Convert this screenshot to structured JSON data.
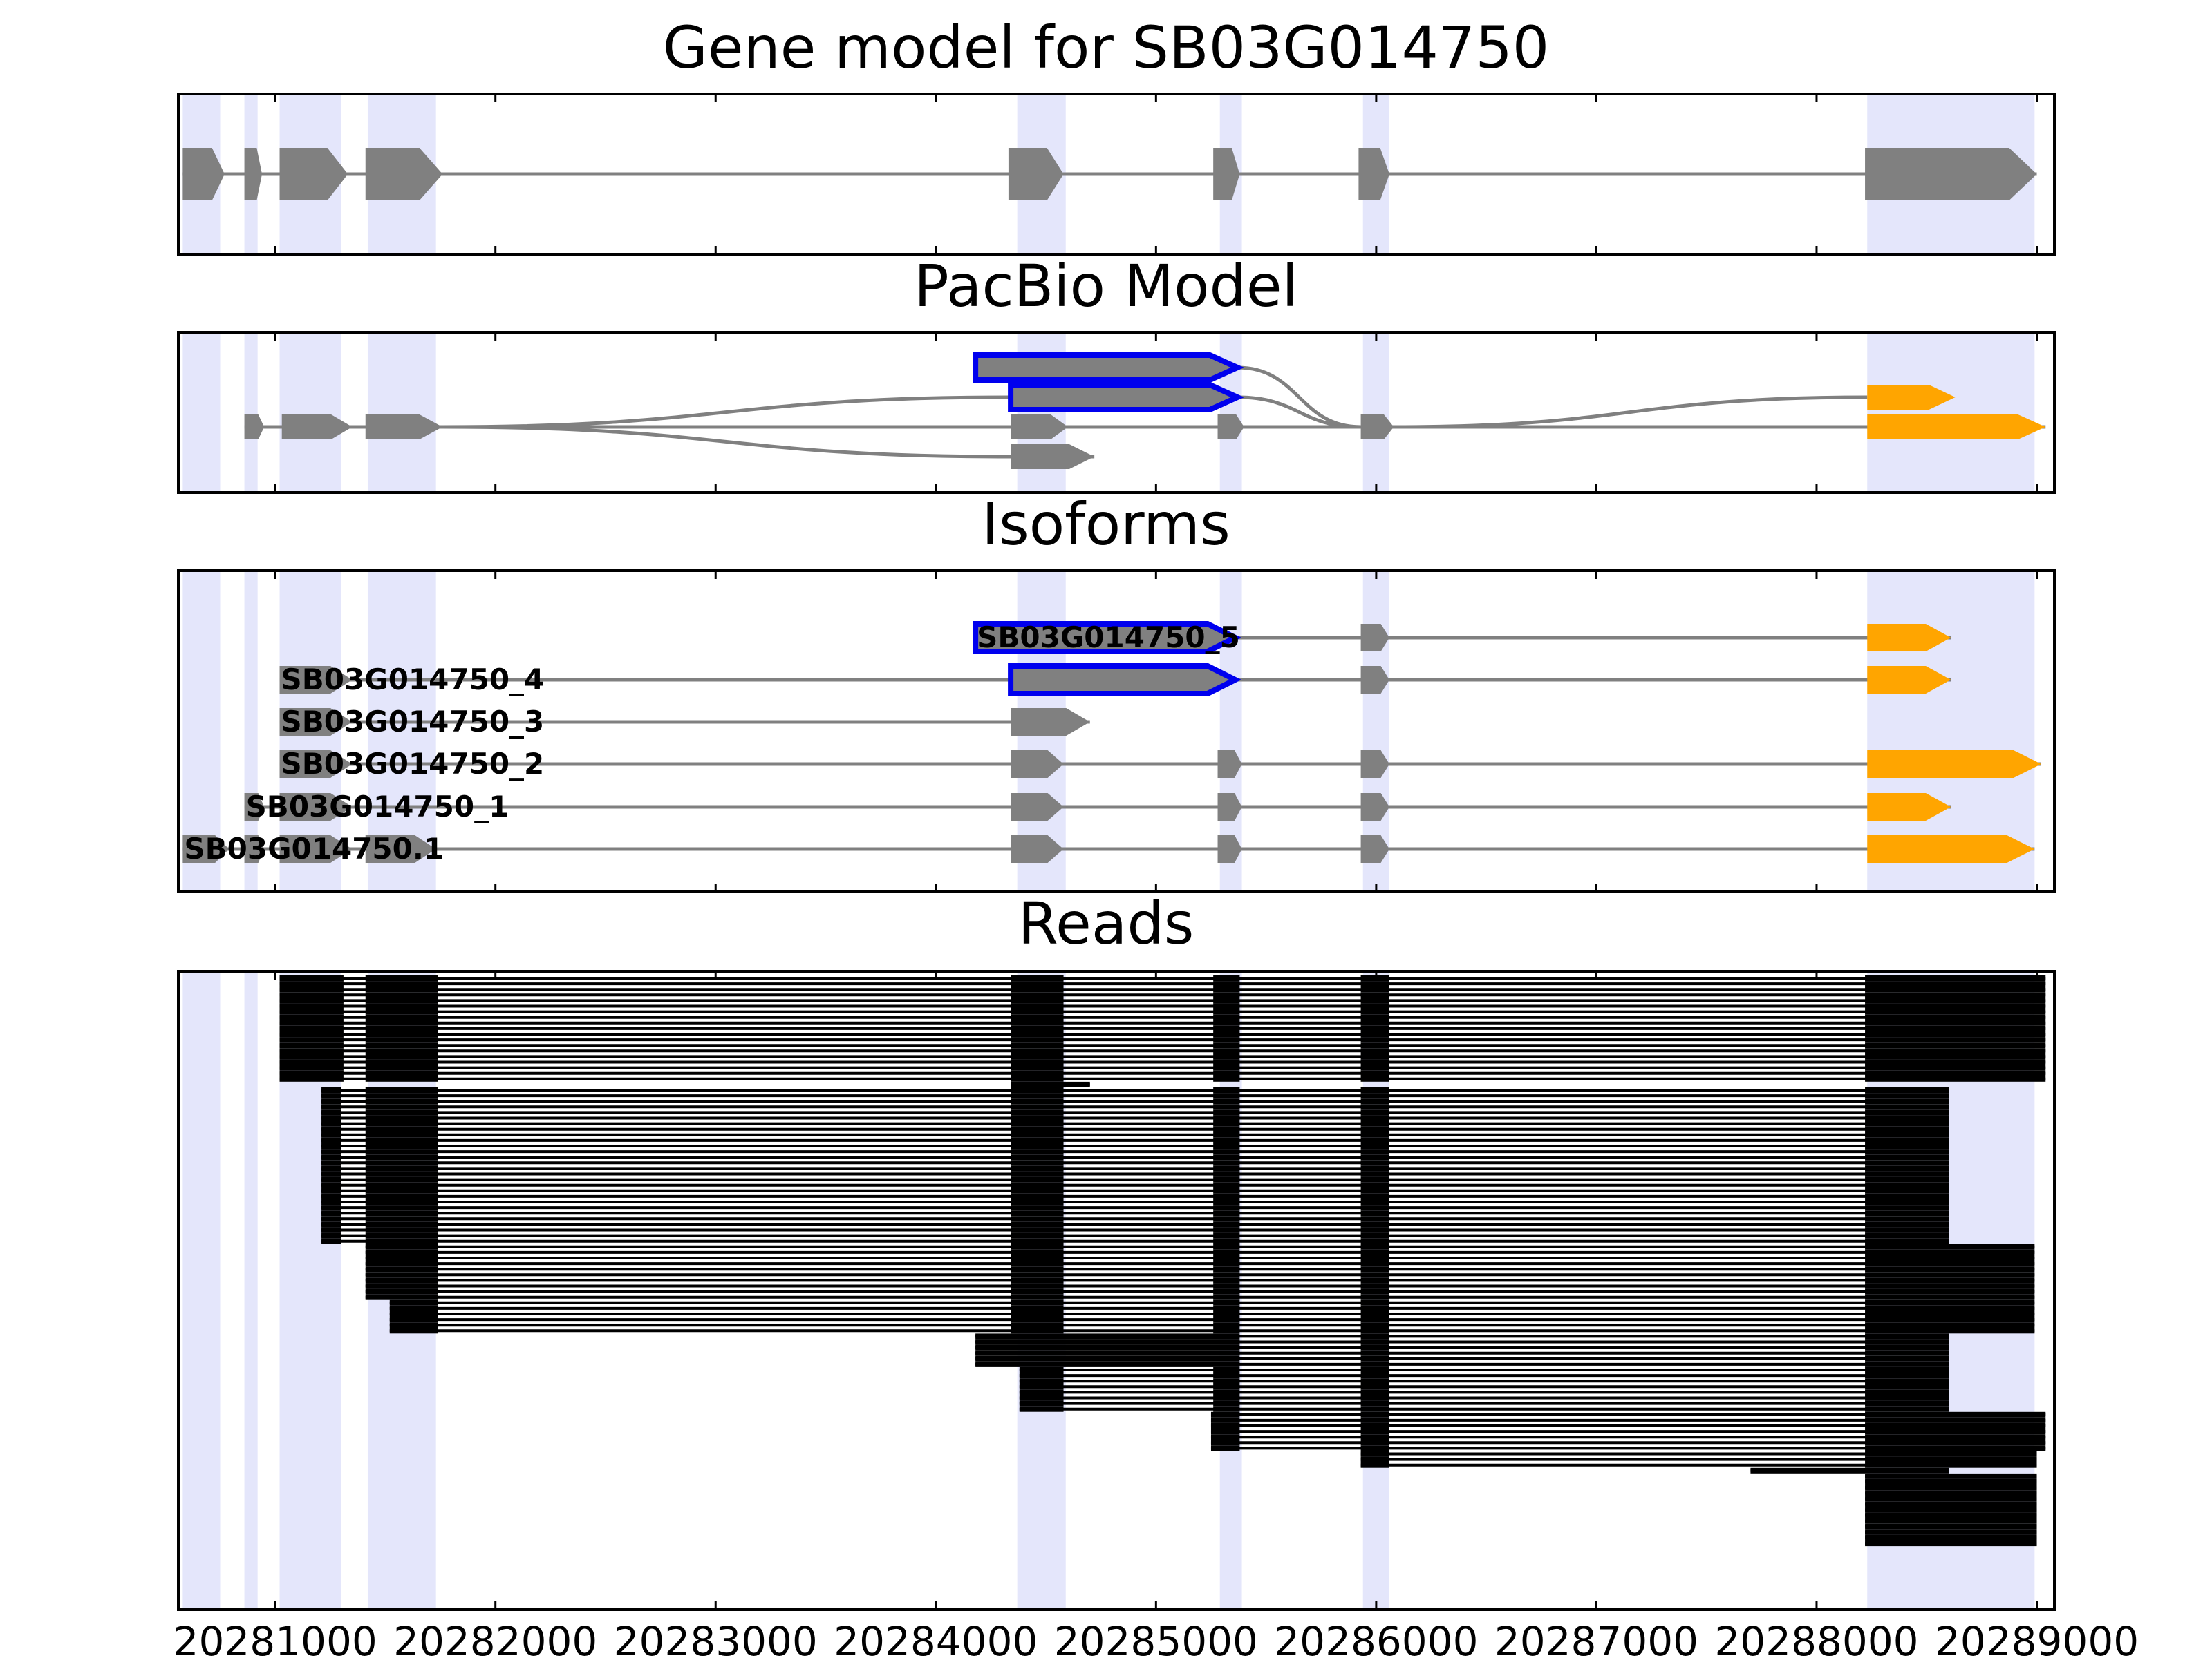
{
  "chart_data": {
    "type": "gene-structure",
    "x_axis": {
      "range": [
        20280560,
        20289080
      ],
      "ticks": [
        20281000,
        20282000,
        20283000,
        20284000,
        20285000,
        20286000,
        20287000,
        20288000,
        20289000
      ],
      "tick_labels": [
        "20281000",
        "20282000",
        "20283000",
        "20284000",
        "20285000",
        "20286000",
        "20287000",
        "20288000",
        "20289000"
      ]
    },
    "exon_regions": [
      [
        20280580,
        20280750
      ],
      [
        20280860,
        20280920
      ],
      [
        20281020,
        20281300
      ],
      [
        20281420,
        20281730
      ],
      [
        20284370,
        20284590
      ],
      [
        20285290,
        20285390
      ],
      [
        20285940,
        20286060
      ],
      [
        20288230,
        20288990
      ]
    ],
    "colors": {
      "region": "#E4E6FB",
      "exon": "#808080",
      "intron": "#808080",
      "highlight": "#0000EE",
      "utr": "#FFA500",
      "read": "#000000"
    },
    "panels": [
      {
        "title": "Gene model for SB03G014750",
        "tracks": [
          {
            "exons": [
              [
                20280580,
                20280770
              ],
              [
                20280860,
                20280940
              ],
              [
                20281020,
                20281330
              ],
              [
                20281410,
                20281760
              ],
              [
                20284330,
                20284580
              ],
              [
                20285260,
                20285380
              ],
              [
                20285920,
                20286060
              ],
              [
                20288220,
                20289000
              ]
            ]
          }
        ]
      },
      {
        "title": "PacBio Model",
        "tracks": [
          {
            "name": "upper",
            "exons": [
              [
                20284180,
                20285370
              ]
            ],
            "highlight": true
          },
          {
            "name": "middle",
            "exons": [
              [
                20284340,
                20285370
              ]
            ],
            "highlight": true,
            "orange": [
              [
                20288230,
                20288630
              ]
            ]
          },
          {
            "name": "main",
            "exons": [
              [
                20280860,
                20280950
              ],
              [
                20281030,
                20281350
              ],
              [
                20281410,
                20281760
              ],
              [
                20284340,
                20284600
              ],
              [
                20285280,
                20285400
              ],
              [
                20285930,
                20286080
              ]
            ],
            "orange": [
              [
                20288230,
                20289040
              ]
            ]
          },
          {
            "name": "lower",
            "exons": [
              [
                20284340,
                20284720
              ]
            ]
          }
        ]
      },
      {
        "title": "Isoforms",
        "tracks": [
          {
            "label": "SB03G014750_5",
            "exons": [
              [
                20284180,
                20285360
              ],
              [
                20285930,
                20286060
              ]
            ],
            "highlight": true,
            "orange": [
              [
                20288230,
                20288610
              ]
            ]
          },
          {
            "label": "SB03G014750_4",
            "exons": [
              [
                20281020,
                20281350
              ],
              [
                20284340,
                20285360
              ],
              [
                20285930,
                20286060
              ]
            ],
            "highlight": true,
            "orange": [
              [
                20288230,
                20288610
              ]
            ]
          },
          {
            "label": "SB03G014750_3",
            "exons": [
              [
                20281020,
                20281350
              ],
              [
                20284340,
                20284700
              ]
            ]
          },
          {
            "label": "SB03G014750_2",
            "exons": [
              [
                20281020,
                20281350
              ],
              [
                20284340,
                20284580
              ],
              [
                20285280,
                20285390
              ],
              [
                20285930,
                20286060
              ]
            ],
            "orange": [
              [
                20288230,
                20289020
              ]
            ]
          },
          {
            "label": "SB03G014750_1",
            "exons": [
              [
                20280860,
                20280950
              ],
              [
                20281020,
                20281350
              ],
              [
                20284340,
                20284580
              ],
              [
                20285280,
                20285390
              ],
              [
                20285930,
                20286060
              ]
            ],
            "orange": [
              [
                20288230,
                20288610
              ]
            ]
          },
          {
            "label": "SB03G014750.1",
            "exons": [
              [
                20280580,
                20280790
              ],
              [
                20280860,
                20280950
              ],
              [
                20281020,
                20281350
              ],
              [
                20281410,
                20281730
              ],
              [
                20284340,
                20284580
              ],
              [
                20285280,
                20285390
              ],
              [
                20285930,
                20286060
              ]
            ],
            "orange": [
              [
                20288230,
                20288990
              ]
            ]
          }
        ]
      },
      {
        "title": "Reads",
        "read_groups": [
          {
            "count": 19,
            "start": 20281020,
            "end": 20289040,
            "blocks": [
              [
                20281020,
                20281310
              ],
              [
                20281410,
                20281740
              ],
              [
                20284340,
                20284580
              ],
              [
                20285260,
                20285380
              ],
              [
                20285930,
                20286060
              ],
              [
                20288220,
                20289040
              ]
            ]
          },
          {
            "count": 1,
            "start": 20284340,
            "end": 20284700,
            "blocks": [
              [
                20284340,
                20284700
              ]
            ]
          },
          {
            "count": 28,
            "start": 20281210,
            "end": 20288600,
            "blocks": [
              [
                20281210,
                20281300
              ],
              [
                20281410,
                20281740
              ],
              [
                20284340,
                20284580
              ],
              [
                20285260,
                20285380
              ],
              [
                20285930,
                20286060
              ],
              [
                20288220,
                20288600
              ]
            ]
          },
          {
            "count": 10,
            "start": 20281410,
            "end": 20288990,
            "blocks": [
              [
                20281410,
                20281740
              ],
              [
                20284340,
                20284580
              ],
              [
                20285260,
                20285380
              ],
              [
                20285930,
                20286060
              ],
              [
                20288220,
                20288990
              ]
            ]
          },
          {
            "count": 6,
            "start": 20281520,
            "end": 20288990,
            "blocks": [
              [
                20281520,
                20281740
              ],
              [
                20284340,
                20284580
              ],
              [
                20285260,
                20285380
              ],
              [
                20285930,
                20286060
              ],
              [
                20288220,
                20288990
              ]
            ]
          },
          {
            "count": 6,
            "start": 20284180,
            "end": 20288600,
            "blocks": [
              [
                20284180,
                20285380
              ],
              [
                20285930,
                20286060
              ],
              [
                20288220,
                20288600
              ]
            ]
          },
          {
            "count": 8,
            "start": 20284380,
            "end": 20288600,
            "blocks": [
              [
                20284380,
                20284580
              ],
              [
                20285260,
                20285380
              ],
              [
                20285930,
                20286060
              ],
              [
                20288220,
                20288600
              ]
            ]
          },
          {
            "count": 7,
            "start": 20285250,
            "end": 20289040,
            "blocks": [
              [
                20285250,
                20285380
              ],
              [
                20285930,
                20286060
              ],
              [
                20288220,
                20289040
              ]
            ]
          },
          {
            "count": 3,
            "start": 20285930,
            "end": 20289000,
            "blocks": [
              [
                20285930,
                20286060
              ],
              [
                20288220,
                20289000
              ]
            ]
          },
          {
            "count": 1,
            "start": 20287700,
            "end": 20288600,
            "blocks": [
              [
                20287700,
                20288600
              ]
            ]
          },
          {
            "count": 13,
            "start": 20288220,
            "end": 20289000,
            "blocks": [
              [
                20288220,
                20289000
              ]
            ]
          }
        ]
      }
    ]
  }
}
